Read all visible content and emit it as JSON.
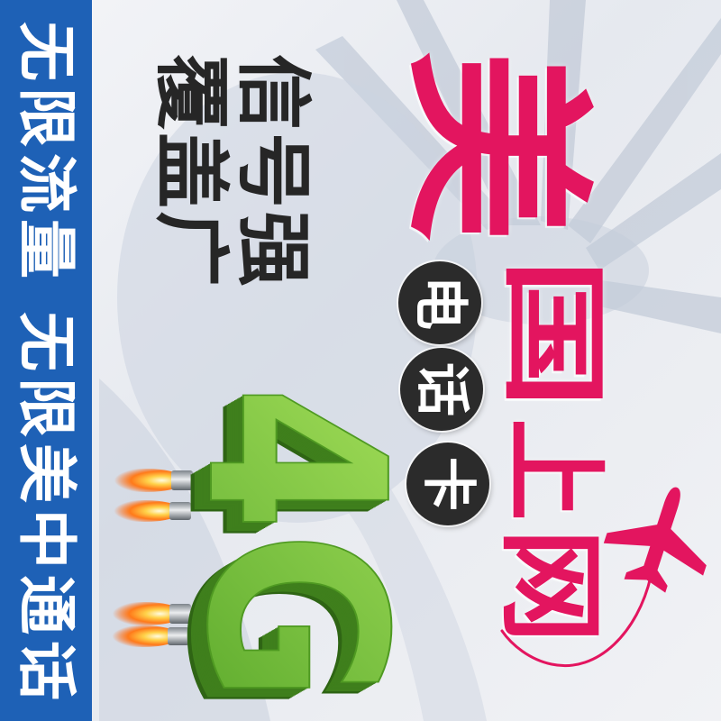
{
  "sidebar": {
    "slogan": "无限流量 无限美中通话"
  },
  "features": {
    "line1": "信号强",
    "line2": "覆盖广"
  },
  "headline": {
    "chars": [
      "美",
      "国",
      "上",
      "网"
    ]
  },
  "badge": {
    "chars": [
      "电",
      "话",
      "卡"
    ]
  },
  "network": {
    "label": "4G"
  },
  "icons": {
    "airplane": "airplane-icon",
    "flame": "rocket-flame-icon"
  },
  "colors": {
    "sidebar": "#1e61b6",
    "headline": "#e3155f",
    "badge": "#2b2b2b",
    "network_light": "#a6e05a",
    "network_mid": "#7cc242",
    "network_dark": "#3f7f1c"
  }
}
